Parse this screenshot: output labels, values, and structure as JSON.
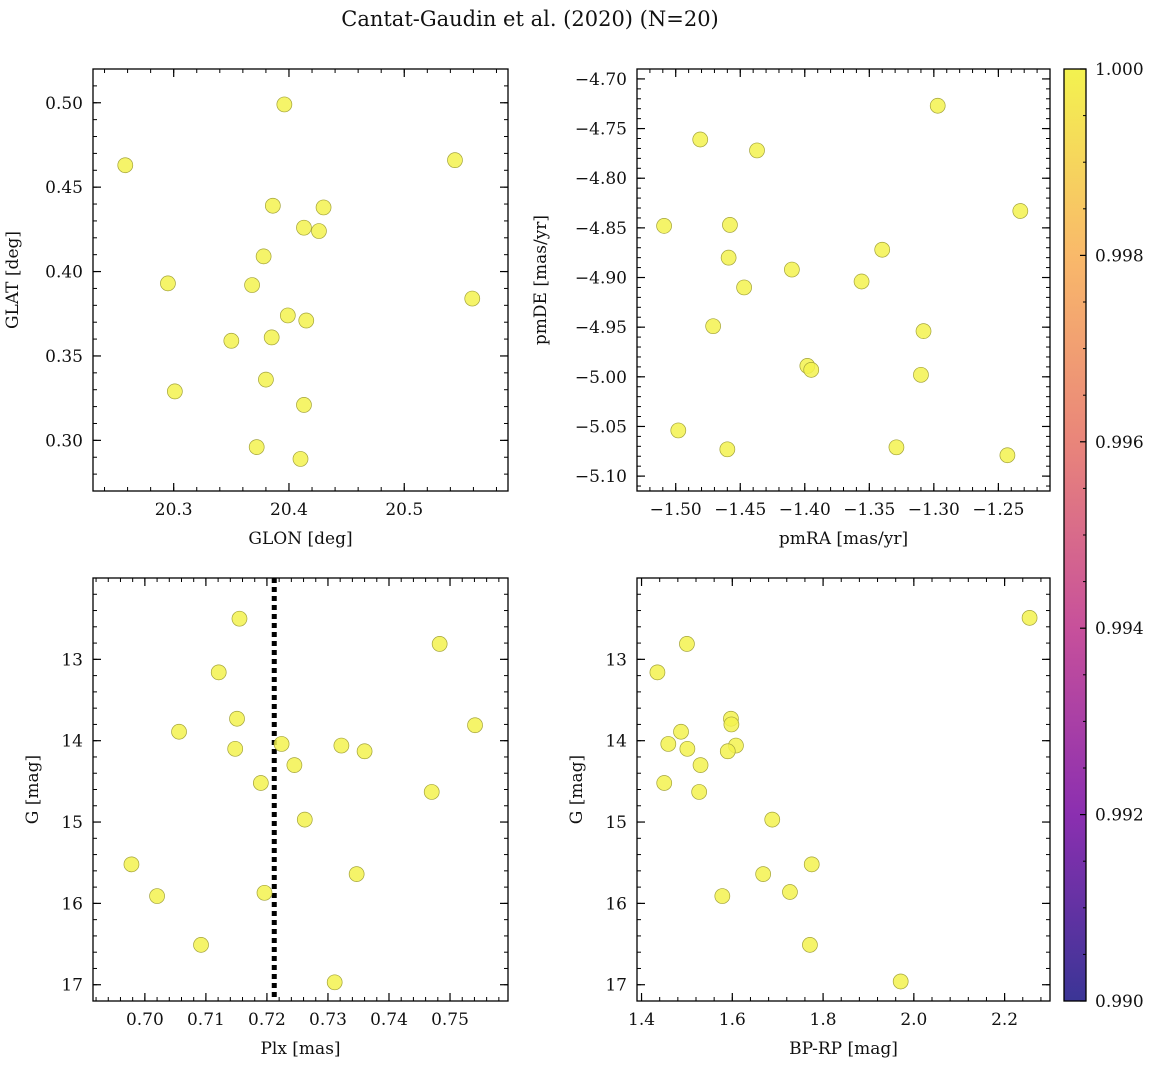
{
  "figure": {
    "title": "Cantat-Gaudin et al. (2020) (N=20)"
  },
  "colorbar": {
    "min": 0.99,
    "max": 1.0,
    "tick_labels": [
      "0.990",
      "0.992",
      "0.994",
      "0.996",
      "0.998",
      "1.000"
    ],
    "colors": [
      "#3b3596",
      "#8b2fb0",
      "#c7509b",
      "#e9857a",
      "#f9b96a",
      "#f3f24f"
    ]
  },
  "chart_data": [
    {
      "type": "scatter",
      "xlabel": "GLON [deg]",
      "ylabel": "GLAT [deg]",
      "xlim": [
        20.23,
        20.59
      ],
      "ylim": [
        0.27,
        0.52
      ],
      "xticks": [
        20.3,
        20.4,
        20.5
      ],
      "xtick_labels": [
        "20.3",
        "20.4",
        "20.5"
      ],
      "yticks": [
        0.3,
        0.35,
        0.4,
        0.45,
        0.5
      ],
      "ytick_labels": [
        "0.30",
        "0.35",
        "0.40",
        "0.45",
        "0.50"
      ],
      "y_inverted": false,
      "vline": null,
      "points": [
        {
          "x": 20.258,
          "y": 0.463
        },
        {
          "x": 20.396,
          "y": 0.499
        },
        {
          "x": 20.544,
          "y": 0.466
        },
        {
          "x": 20.386,
          "y": 0.439
        },
        {
          "x": 20.43,
          "y": 0.438
        },
        {
          "x": 20.413,
          "y": 0.426
        },
        {
          "x": 20.426,
          "y": 0.424
        },
        {
          "x": 20.295,
          "y": 0.393
        },
        {
          "x": 20.378,
          "y": 0.409
        },
        {
          "x": 20.368,
          "y": 0.392
        },
        {
          "x": 20.559,
          "y": 0.384
        },
        {
          "x": 20.399,
          "y": 0.374
        },
        {
          "x": 20.415,
          "y": 0.371
        },
        {
          "x": 20.35,
          "y": 0.359
        },
        {
          "x": 20.385,
          "y": 0.361
        },
        {
          "x": 20.301,
          "y": 0.329
        },
        {
          "x": 20.38,
          "y": 0.336
        },
        {
          "x": 20.413,
          "y": 0.321
        },
        {
          "x": 20.372,
          "y": 0.296
        },
        {
          "x": 20.41,
          "y": 0.289
        }
      ]
    },
    {
      "type": "scatter",
      "xlabel": "pmRA [mas/yr]",
      "ylabel": "pmDE [mas/yr]",
      "xlim": [
        -1.53,
        -1.21
      ],
      "ylim": [
        -5.115,
        -4.69
      ],
      "xticks": [
        -1.5,
        -1.45,
        -1.4,
        -1.35,
        -1.3,
        -1.25
      ],
      "xtick_labels": [
        "−1.50",
        "−1.45",
        "−1.40",
        "−1.35",
        "−1.30",
        "−1.25"
      ],
      "yticks": [
        -5.1,
        -5.05,
        -5.0,
        -4.95,
        -4.9,
        -4.85,
        -4.8,
        -4.75,
        -4.7
      ],
      "ytick_labels": [
        "−5.10",
        "−5.05",
        "−5.00",
        "−4.95",
        "−4.90",
        "−4.85",
        "−4.80",
        "−4.75",
        "−4.70"
      ],
      "y_inverted": false,
      "vline": null,
      "points": [
        {
          "x": -1.297,
          "y": -4.727
        },
        {
          "x": -1.481,
          "y": -4.761
        },
        {
          "x": -1.437,
          "y": -4.772
        },
        {
          "x": -1.233,
          "y": -4.833
        },
        {
          "x": -1.509,
          "y": -4.848
        },
        {
          "x": -1.458,
          "y": -4.847
        },
        {
          "x": -1.34,
          "y": -4.872
        },
        {
          "x": -1.459,
          "y": -4.88
        },
        {
          "x": -1.41,
          "y": -4.892
        },
        {
          "x": -1.356,
          "y": -4.904
        },
        {
          "x": -1.447,
          "y": -4.91
        },
        {
          "x": -1.471,
          "y": -4.949
        },
        {
          "x": -1.308,
          "y": -4.954
        },
        {
          "x": -1.398,
          "y": -4.989
        },
        {
          "x": -1.395,
          "y": -4.993
        },
        {
          "x": -1.31,
          "y": -4.998
        },
        {
          "x": -1.498,
          "y": -5.054
        },
        {
          "x": -1.46,
          "y": -5.073
        },
        {
          "x": -1.329,
          "y": -5.071
        },
        {
          "x": -1.243,
          "y": -5.079
        }
      ]
    },
    {
      "type": "scatter",
      "xlabel": "Plx [mas]",
      "ylabel": "G [mag]",
      "xlim": [
        0.6915,
        0.7595
      ],
      "ylim": [
        12.0,
        17.2
      ],
      "xticks": [
        0.7,
        0.71,
        0.72,
        0.73,
        0.74,
        0.75
      ],
      "xtick_labels": [
        "0.70",
        "0.71",
        "0.72",
        "0.73",
        "0.74",
        "0.75"
      ],
      "yticks": [
        13,
        14,
        15,
        16,
        17
      ],
      "ytick_labels": [
        "13",
        "14",
        "15",
        "16",
        "17"
      ],
      "y_inverted": true,
      "vline": {
        "x": 0.7212,
        "style": "dotted",
        "color": "#000000"
      },
      "points": [
        {
          "x": 0.7155,
          "y": 12.5
        },
        {
          "x": 0.7483,
          "y": 12.81
        },
        {
          "x": 0.7121,
          "y": 13.16
        },
        {
          "x": 0.7151,
          "y": 13.73
        },
        {
          "x": 0.7541,
          "y": 13.81
        },
        {
          "x": 0.7056,
          "y": 13.89
        },
        {
          "x": 0.7148,
          "y": 14.1
        },
        {
          "x": 0.7224,
          "y": 14.04
        },
        {
          "x": 0.7322,
          "y": 14.06
        },
        {
          "x": 0.736,
          "y": 14.13
        },
        {
          "x": 0.7245,
          "y": 14.3
        },
        {
          "x": 0.719,
          "y": 14.52
        },
        {
          "x": 0.747,
          "y": 14.63
        },
        {
          "x": 0.7262,
          "y": 14.97
        },
        {
          "x": 0.6978,
          "y": 15.52
        },
        {
          "x": 0.7347,
          "y": 15.64
        },
        {
          "x": 0.702,
          "y": 15.91
        },
        {
          "x": 0.7196,
          "y": 15.87
        },
        {
          "x": 0.7092,
          "y": 16.51
        },
        {
          "x": 0.7311,
          "y": 16.97
        }
      ]
    },
    {
      "type": "scatter",
      "xlabel": "BP-RP [mag]",
      "ylabel": "G [mag]",
      "xlim": [
        1.39,
        2.3
      ],
      "ylim": [
        12.0,
        17.2
      ],
      "xticks": [
        1.4,
        1.6,
        1.8,
        2.0,
        2.2
      ],
      "xtick_labels": [
        "1.4",
        "1.6",
        "1.8",
        "2.0",
        "2.2"
      ],
      "yticks": [
        13,
        14,
        15,
        16,
        17
      ],
      "ytick_labels": [
        "13",
        "14",
        "15",
        "16",
        "17"
      ],
      "y_inverted": true,
      "vline": null,
      "points": [
        {
          "x": 2.255,
          "y": 12.49
        },
        {
          "x": 1.5,
          "y": 12.81
        },
        {
          "x": 1.435,
          "y": 13.16
        },
        {
          "x": 1.597,
          "y": 13.73
        },
        {
          "x": 1.598,
          "y": 13.8
        },
        {
          "x": 1.487,
          "y": 13.89
        },
        {
          "x": 1.459,
          "y": 14.04
        },
        {
          "x": 1.501,
          "y": 14.1
        },
        {
          "x": 1.608,
          "y": 14.06
        },
        {
          "x": 1.59,
          "y": 14.13
        },
        {
          "x": 1.53,
          "y": 14.3
        },
        {
          "x": 1.45,
          "y": 14.52
        },
        {
          "x": 1.527,
          "y": 14.63
        },
        {
          "x": 1.688,
          "y": 14.97
        },
        {
          "x": 1.775,
          "y": 15.52
        },
        {
          "x": 1.668,
          "y": 15.64
        },
        {
          "x": 1.578,
          "y": 15.91
        },
        {
          "x": 1.727,
          "y": 15.86
        },
        {
          "x": 1.771,
          "y": 16.51
        },
        {
          "x": 1.971,
          "y": 16.96
        }
      ]
    }
  ]
}
